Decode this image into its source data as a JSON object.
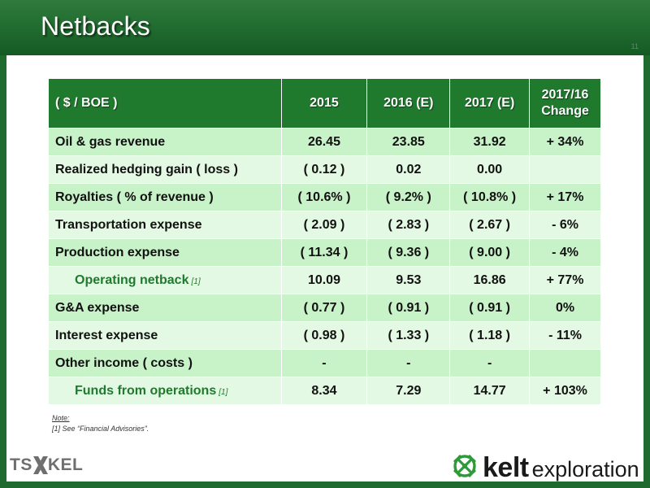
{
  "slide": {
    "title": "Netbacks",
    "page_number": "11"
  },
  "table": {
    "headers": {
      "label": "( $ / BOE )",
      "col_2015": "2015",
      "col_2016": "2016 (E)",
      "col_2017": "2017 (E)",
      "change_line1": "2017/16",
      "change_line2": "Change"
    },
    "rows": [
      {
        "label": "Oil & gas revenue",
        "ref": "",
        "v2015": "26.45",
        "v2016": "23.85",
        "v2017": "31.92",
        "change": "+ 34%"
      },
      {
        "label": "Realized hedging gain ( loss )",
        "ref": "",
        "v2015": "( 0.12 )",
        "v2016": "0.02",
        "v2017": "0.00",
        "change": ""
      },
      {
        "label": "Royalties ( % of revenue )",
        "ref": "",
        "v2015": "( 10.6% )",
        "v2016": "( 9.2% )",
        "v2017": "( 10.8% )",
        "change": "+ 17%"
      },
      {
        "label": "Transportation expense",
        "ref": "",
        "v2015": "( 2.09 )",
        "v2016": "( 2.83 )",
        "v2017": "( 2.67 )",
        "change": "- 6%"
      },
      {
        "label": "Production expense",
        "ref": "",
        "v2015": "( 11.34 )",
        "v2016": "( 9.36 )",
        "v2017": "( 9.00 )",
        "change": "- 4%"
      },
      {
        "label": "Operating netback",
        "ref": "[1]",
        "v2015": "10.09",
        "v2016": "9.53",
        "v2017": "16.86",
        "change": "+ 77%"
      },
      {
        "label": "G&A expense",
        "ref": "",
        "v2015": "( 0.77 )",
        "v2016": "( 0.91 )",
        "v2017": "( 0.91 )",
        "change": "0%"
      },
      {
        "label": "Interest expense",
        "ref": "",
        "v2015": "( 0.98 )",
        "v2016": "( 1.33 )",
        "v2017": "( 1.18 )",
        "change": "- 11%"
      },
      {
        "label": "Other income ( costs )",
        "ref": "",
        "v2015": "-",
        "v2016": "-",
        "v2017": "-",
        "change": ""
      },
      {
        "label": "Funds from operations",
        "ref": "[1]",
        "v2015": "8.34",
        "v2016": "7.29",
        "v2017": "14.77",
        "change": "+ 103%"
      }
    ]
  },
  "notes": {
    "title": "Note:",
    "line1": "[1] See “Financial Advisories”."
  },
  "logos": {
    "tsx_left": "TS",
    "tsx_right": "KEL",
    "kelt_word": "kelt",
    "kelt_sub": "exploration"
  },
  "colors": {
    "header_green": "#1f6a2e",
    "table_header_green": "#1f7a2e",
    "row_dark": "#c8f2c8",
    "row_light": "#e3f9e3",
    "kelt_green": "#2e9a3a"
  }
}
